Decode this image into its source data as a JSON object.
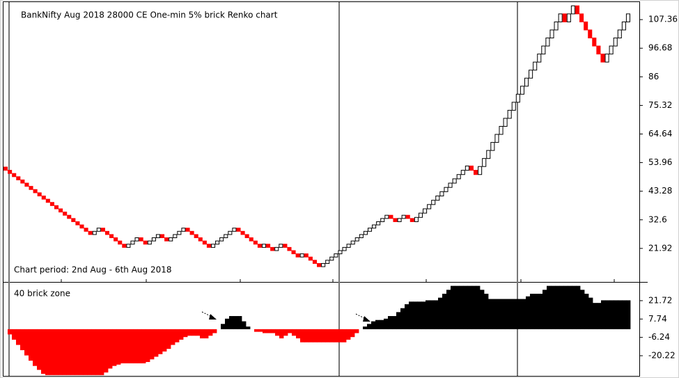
{
  "chart_data": [
    {
      "type": "renko",
      "title": "BankNifty Aug 2018 28000 CE One-min 5% brick Renko chart",
      "subtitle": "Chart period: 2nd Aug - 6th Aug 2018",
      "values": [
        52.3,
        51.1,
        49.9,
        48.7,
        47.5,
        46.3,
        45.1,
        43.9,
        42.7,
        41.5,
        40.3,
        39.1,
        37.9,
        36.7,
        35.5,
        34.3,
        33.1,
        31.9,
        30.7,
        29.5,
        28.3,
        27.1,
        28.3,
        29.5,
        28.3,
        27.1,
        25.9,
        24.7,
        23.5,
        22.3,
        23.5,
        24.7,
        25.9,
        24.7,
        23.5,
        24.7,
        25.9,
        27.1,
        25.9,
        24.7,
        25.9,
        27.1,
        28.3,
        29.5,
        28.3,
        27.1,
        25.9,
        24.7,
        23.5,
        22.3,
        23.5,
        24.7,
        25.9,
        27.1,
        28.3,
        29.5,
        28.3,
        27.1,
        25.9,
        24.7,
        23.5,
        22.3,
        23.5,
        22.3,
        21.1,
        22.3,
        23.5,
        22.3,
        21.1,
        19.9,
        18.7,
        19.9,
        18.7,
        17.5,
        16.3,
        15.1,
        16.3,
        17.5,
        18.7,
        19.9,
        21.1,
        22.3,
        23.5,
        24.7,
        25.9,
        27.1,
        28.3,
        29.5,
        30.7,
        31.9,
        33.1,
        34.3,
        33.1,
        31.9,
        33.1,
        34.3,
        33.1,
        31.9,
        33.5,
        35.1,
        36.7,
        38.3,
        39.9,
        41.5,
        43.1,
        44.7,
        46.3,
        47.9,
        49.5,
        51.1,
        52.7,
        51.1,
        49.5,
        52.5,
        55.5,
        58.5,
        61.5,
        64.5,
        67.5,
        70.5,
        73.5,
        76.5,
        79.5,
        82.5,
        85.5,
        88.5,
        91.5,
        94.5,
        97.5,
        100.5,
        103.5,
        106.5,
        109.5,
        106.5,
        109.5,
        112.5,
        109.5,
        106.5,
        103.5,
        100.5,
        97.5,
        94.5,
        91.5,
        94.5,
        97.5,
        100.5,
        103.5,
        106.5,
        109.5
      ],
      "up_color": "#ffffff",
      "down_color": "#ff0000",
      "ylim": [
        9.4,
        113.9
      ],
      "yticks": [
        21.92,
        32.6,
        43.28,
        53.96,
        64.64,
        75.32,
        86,
        96.68,
        107.36
      ]
    },
    {
      "type": "zone",
      "title": "40 brick zone",
      "values": [
        0,
        -4,
        -8,
        -12,
        -16,
        -20,
        -24,
        -28,
        -31,
        -34,
        -35,
        -35,
        -35,
        -35,
        -35,
        -35,
        -35,
        -35,
        -35,
        -35,
        -35,
        -35,
        -35,
        -35,
        -33,
        -30,
        -28,
        -27,
        -26,
        -26,
        -26,
        -26,
        -26,
        -26,
        -25,
        -23,
        -21,
        -19,
        -17,
        -15,
        -12,
        -10,
        -8,
        -6,
        -5,
        -5,
        -5,
        -7,
        -7,
        -5,
        -3,
        0,
        4,
        8,
        10,
        10,
        10,
        6,
        2,
        0,
        -2,
        -2,
        -3,
        -3,
        -3,
        -5,
        -7,
        -5,
        -3,
        -5,
        -7,
        -10,
        -10,
        -10,
        -10,
        -10,
        -10,
        -10,
        -10,
        -10,
        -10,
        -10,
        -8,
        -6,
        -3,
        0,
        2,
        4,
        6,
        7,
        7,
        8,
        10,
        10,
        13,
        16,
        19,
        21,
        21,
        21,
        21,
        22,
        22,
        22,
        24,
        27,
        30,
        33,
        33,
        33,
        33,
        33,
        33,
        33,
        30,
        27,
        23,
        23,
        23,
        23,
        23,
        23,
        23,
        23,
        23,
        25,
        27,
        27,
        27,
        30,
        33,
        33,
        33,
        33,
        33,
        33,
        33,
        33,
        30,
        27,
        24,
        20,
        20,
        22,
        22,
        22,
        22,
        22,
        22,
        22
      ],
      "positive_color": "#000000",
      "negative_color": "#ff0000",
      "ylim": [
        -35.6,
        36.0
      ],
      "yticks": [
        21.72,
        7.74,
        -6.24,
        -20.22
      ]
    }
  ]
}
